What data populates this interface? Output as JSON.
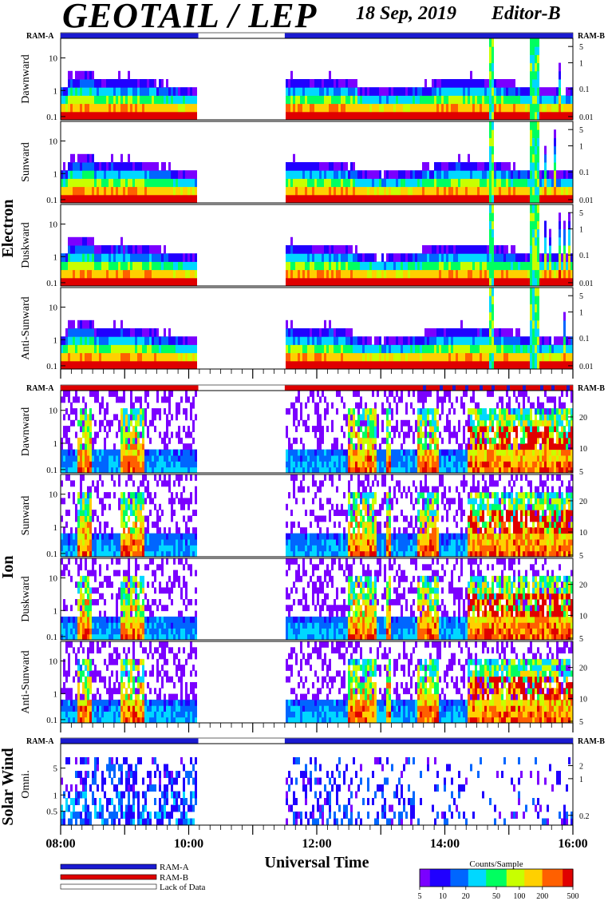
{
  "header": {
    "title": "GEOTAIL / LEP",
    "date": "18 Sep, 2019",
    "editor": "Editor-B"
  },
  "colors": {
    "ram_a": "#1a1ad0",
    "ram_b": "#dd0000",
    "background": "#ffffff"
  },
  "chart_data": {
    "type": "heatmap",
    "xlabel": "Universal Time",
    "x_ticks": [
      "08:00",
      "10:00",
      "12:00",
      "14:00",
      "16:00"
    ],
    "x_range_hours": [
      8,
      16
    ],
    "data_gap_hours": [
      10.15,
      11.5
    ],
    "colorbar": {
      "title": "Counts/Sample",
      "ticks": [
        "5",
        "10",
        "20",
        "50",
        "100",
        "200",
        "500"
      ],
      "colors": [
        "#7b00ff",
        "#2000ff",
        "#0066ff",
        "#00d8ff",
        "#00ff60",
        "#c8ff00",
        "#ffd000",
        "#ff6000",
        "#e00000"
      ]
    },
    "legend": [
      {
        "label": "RAM-A",
        "color": "#1a1ad0"
      },
      {
        "label": "RAM-B",
        "color": "#dd0000"
      },
      {
        "label": "Lack of Data",
        "color": "#ffffff"
      }
    ],
    "groups": [
      {
        "name": "Electron",
        "left_tag": "RAM-A",
        "right_tag": "RAM-B",
        "mode_bar": "a",
        "left_ticks": [
          "10",
          "1",
          "0.1"
        ],
        "right_ticks": [
          "5",
          "1",
          "0.1",
          "0.01"
        ],
        "panels": [
          "Dawnward",
          "Sunward",
          "Duskward",
          "Anti-Sunward"
        ]
      },
      {
        "name": "Ion",
        "left_tag": "RAM-A",
        "right_tag": "RAM-B",
        "mode_bar": "b",
        "left_ticks": [
          "10",
          "1",
          "0.1"
        ],
        "right_ticks": [
          "20",
          "10",
          "5"
        ],
        "panels": [
          "Dawnward",
          "Sunward",
          "Duskward",
          "Anti-Sunward"
        ]
      },
      {
        "name": "Solar Wind",
        "left_tag": "RAM-A",
        "right_tag": "RAM-B",
        "mode_bar": "a",
        "left_ticks": [
          "5",
          "1",
          "0.5"
        ],
        "right_ticks": [
          "2",
          "1",
          "0.2"
        ],
        "panels": [
          "Omni."
        ]
      }
    ]
  }
}
